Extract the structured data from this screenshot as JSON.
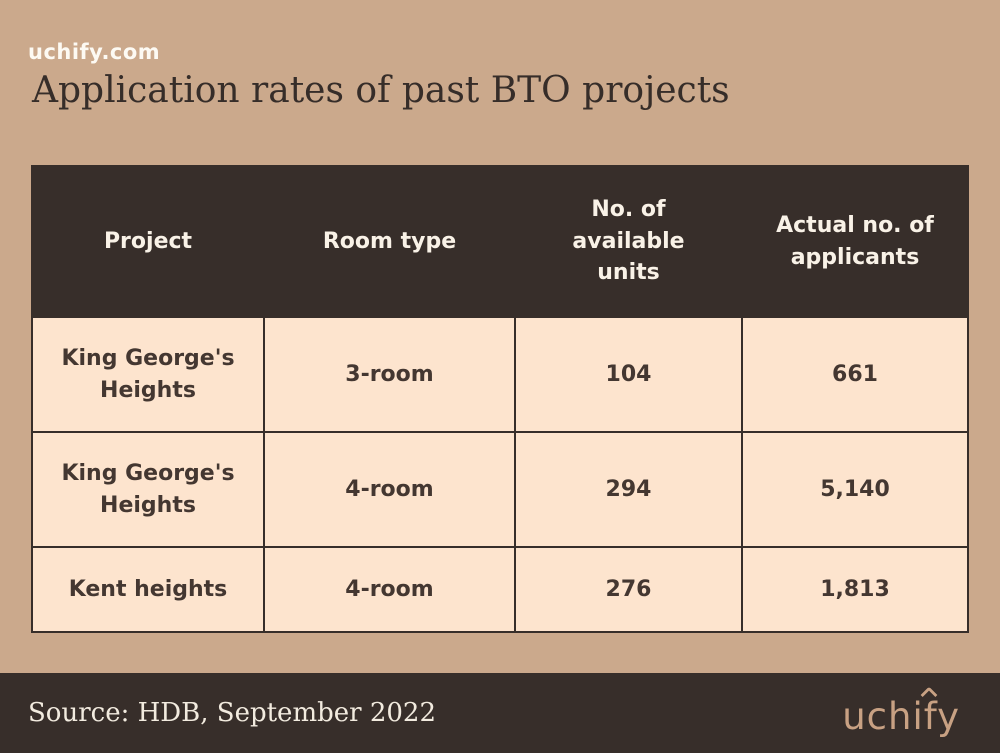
{
  "header": {
    "site": "uchify.com",
    "title": "Application rates of past BTO projects"
  },
  "table": {
    "headers": [
      "Project",
      "Room type",
      "No. of\navailable\nunits",
      "Actual no. of\napplicants"
    ],
    "rows": [
      [
        "King George's\nHeights",
        "3-room",
        "104",
        "661"
      ],
      [
        "King George's\nHeights",
        "4-room",
        "294",
        "5,140"
      ],
      [
        "Kent heights",
        "4-room",
        "276",
        "1,813"
      ]
    ]
  },
  "footer": {
    "source": "Source: HDB, September 2022",
    "logo_text": "uchify"
  },
  "colors": {
    "background_tan": "#cba98c",
    "dark_brown": "#372e2a",
    "cell_cream": "#fde4ce",
    "header_text_cream": "#f9f2e7",
    "logo_tan": "#c8a183"
  },
  "chart_data": {
    "type": "table",
    "title": "Application rates of past BTO projects",
    "source": "Source: HDB, September 2022",
    "columns": [
      "Project",
      "Room type",
      "No. of available units",
      "Actual no. of applicants"
    ],
    "rows": [
      {
        "project": "King George's Heights",
        "room_type": "3-room",
        "available_units": 104,
        "applicants": 661
      },
      {
        "project": "King George's Heights",
        "room_type": "4-room",
        "available_units": 294,
        "applicants": 5140
      },
      {
        "project": "Kent heights",
        "room_type": "4-room",
        "available_units": 276,
        "applicants": 1813
      }
    ]
  }
}
